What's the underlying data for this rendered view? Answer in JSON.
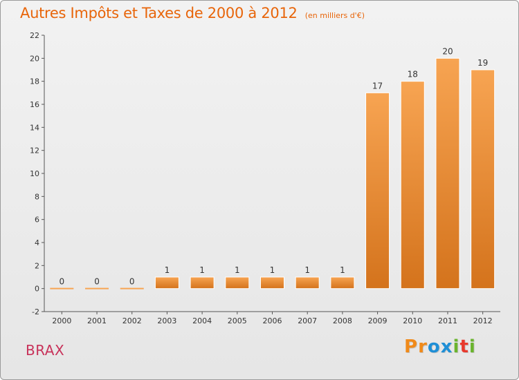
{
  "title": "Autres Impôts et Taxes de 2000 à 2012",
  "subtitle": "(en milliers d'€)",
  "place_name": "BRAX",
  "brand": {
    "letters": [
      "P",
      "r",
      "o",
      "x",
      "i",
      "t",
      "i"
    ]
  },
  "colors": {
    "title": "#e8650a",
    "bar_light": "#f7a452",
    "bar_dark": "#d4731c",
    "place": "#c8325a",
    "brand_letters": [
      "#f08a1a",
      "#f08a1a",
      "#1f8fd6",
      "#1f8fd6",
      "#6ab42d",
      "#e8392d",
      "#6ab42d"
    ]
  },
  "chart_data": {
    "type": "bar",
    "categories": [
      "2000",
      "2001",
      "2002",
      "2003",
      "2004",
      "2005",
      "2006",
      "2007",
      "2008",
      "2009",
      "2010",
      "2011",
      "2012"
    ],
    "values": [
      0,
      0,
      0,
      1,
      1,
      1,
      1,
      1,
      1,
      17,
      18,
      20,
      19
    ],
    "data_labels": [
      "0",
      "0",
      "0",
      "1",
      "1",
      "1",
      "1",
      "1",
      "1",
      "17",
      "18",
      "20",
      "19"
    ],
    "title": "Autres Impôts et Taxes de 2000 à 2012",
    "subtitle": "(en milliers d'€)",
    "xlabel": "",
    "ylabel": "",
    "ylim": [
      -2,
      22
    ],
    "yticks": [
      -2,
      0,
      2,
      4,
      6,
      8,
      10,
      12,
      14,
      16,
      18,
      20,
      22
    ],
    "grid": false,
    "legend": "none"
  }
}
